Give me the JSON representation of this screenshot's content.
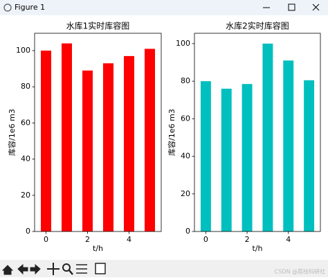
{
  "window": {
    "title": "Figure 1"
  },
  "watermark": "CSDN @荔枝科研社",
  "chart_data": [
    {
      "type": "bar",
      "title": "水库1实时库容图",
      "xlabel": "t/h",
      "ylabel": "库容/1e6 m3",
      "x": [
        0,
        1,
        2,
        3,
        4,
        5
      ],
      "values": [
        100,
        104,
        89,
        93,
        97,
        101
      ],
      "color": "#ff0000",
      "xlim": [
        -0.55,
        5.55
      ],
      "xticks": [
        0,
        2,
        4
      ],
      "ylim": [
        0,
        109.6
      ],
      "yticks": [
        0,
        20,
        40,
        60,
        80,
        100
      ]
    },
    {
      "type": "bar",
      "title": "水库2实时库容图",
      "xlabel": "t/h",
      "ylabel": "库容/1e6 m3",
      "x": [
        0,
        1,
        2,
        3,
        4,
        5
      ],
      "values": [
        80,
        76,
        78.5,
        100,
        91,
        80.5
      ],
      "color": "#00bfbf",
      "xlim": [
        -0.55,
        5.55
      ],
      "xticks": [
        0,
        2,
        4
      ],
      "ylim": [
        0,
        105.5
      ],
      "yticks": [
        0,
        20,
        40,
        60,
        80,
        100
      ]
    }
  ]
}
